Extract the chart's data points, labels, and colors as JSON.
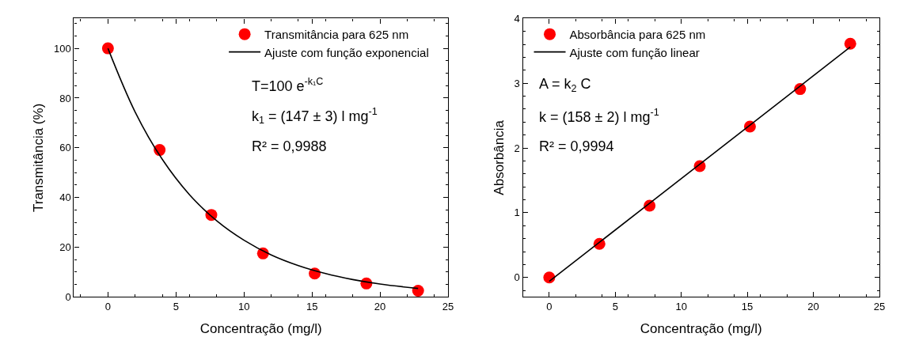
{
  "chart_data": [
    {
      "type": "scatter",
      "xlabel": "Concentração (mg/l)",
      "ylabel": "Transmitância (%)",
      "xlim": [
        -2.5,
        25
      ],
      "xticks": [
        0,
        5,
        10,
        15,
        20,
        25
      ],
      "ylim": [
        0,
        112
      ],
      "yticks": [
        0,
        20,
        40,
        60,
        80,
        100
      ],
      "legend": "top right",
      "marker": "circle",
      "x": [
        0,
        3.8,
        7.6,
        11.4,
        15.2,
        19.0,
        22.8
      ],
      "series": [
        {
          "name": "Transmitância para 625 nm",
          "color": "#ff0000",
          "values": [
            100,
            59.1,
            33.0,
            17.5,
            9.4,
            5.4,
            2.5
          ]
        },
        {
          "name": "Ajuste com função exponencial",
          "type": "line",
          "color": "#000000",
          "marker": "none",
          "line_style": "solid",
          "x": [
            0,
            2,
            4,
            6,
            8,
            10,
            12,
            14,
            16,
            18,
            20,
            22.8
          ],
          "values": [
            100,
            74.4,
            55.3,
            41.1,
            30.6,
            22.8,
            16.9,
            12.6,
            9.4,
            7.0,
            5.2,
            3.4
          ]
        }
      ],
      "annotations": [
        "T=100 e$^{-k₁C}$",
        "k$_{1}$ = (147 ± 3) l mg$^{-1}$",
        "R² = 0,9988"
      ]
    },
    {
      "type": "scatter",
      "xlabel": "Concentração (mg/l)",
      "ylabel": "Absorbância",
      "xlim": [
        -2,
        25
      ],
      "xticks": [
        0,
        5,
        10,
        15,
        20,
        25
      ],
      "ylim": [
        -0.3,
        4
      ],
      "yticks": [
        0,
        1,
        2,
        3,
        4
      ],
      "legend": "top left",
      "marker": "circle",
      "x": [
        0,
        3.8,
        7.6,
        11.4,
        15.2,
        19.0,
        22.8
      ],
      "series": [
        {
          "name": "Absorbância para 625 nm",
          "color": "#ff0000",
          "values": [
            0,
            0.52,
            1.11,
            1.72,
            2.33,
            2.91,
            3.61
          ]
        },
        {
          "name": "Ajuste com função linear",
          "type": "line",
          "color": "#000000",
          "marker": "none",
          "line_style": "solid",
          "x": [
            0,
            22.8
          ],
          "values": [
            -0.06,
            3.56
          ]
        }
      ],
      "annotations": [
        "A = k$_{2}$ C",
        "k = (158 ± 2) l mg$^{-1}$",
        "R² = 0,9994"
      ]
    }
  ]
}
